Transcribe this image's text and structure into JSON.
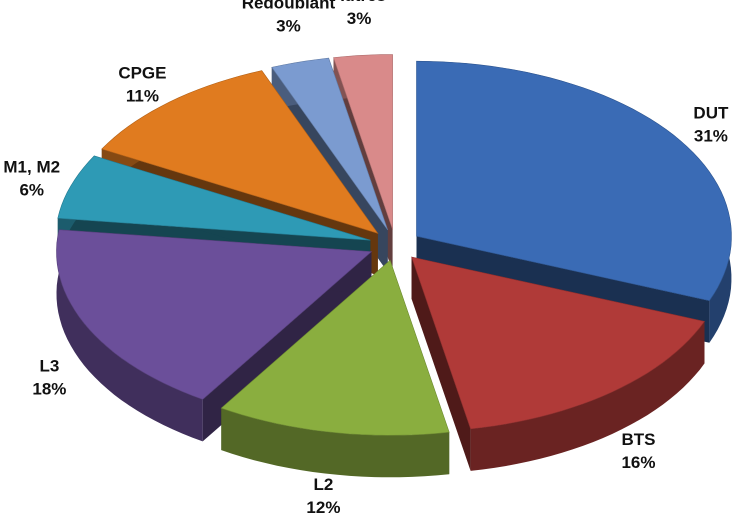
{
  "chart_data": {
    "type": "pie3d",
    "categories": [
      "DUT",
      "BTS",
      "L2",
      "L3",
      "M1, M2",
      "CPGE",
      "Redoublant",
      "Autres"
    ],
    "values": [
      31,
      16,
      12,
      18,
      6,
      11,
      3,
      3
    ],
    "value_labels": [
      "31%",
      "16%",
      "12%",
      "18%",
      "6%",
      "11%",
      "3%",
      "3%"
    ],
    "colors": [
      "#3a6bb5",
      "#b03a38",
      "#8aae3f",
      "#6b4f9a",
      "#2e9ab5",
      "#e07b1f",
      "#7b9bd0",
      "#d98a8a"
    ]
  }
}
